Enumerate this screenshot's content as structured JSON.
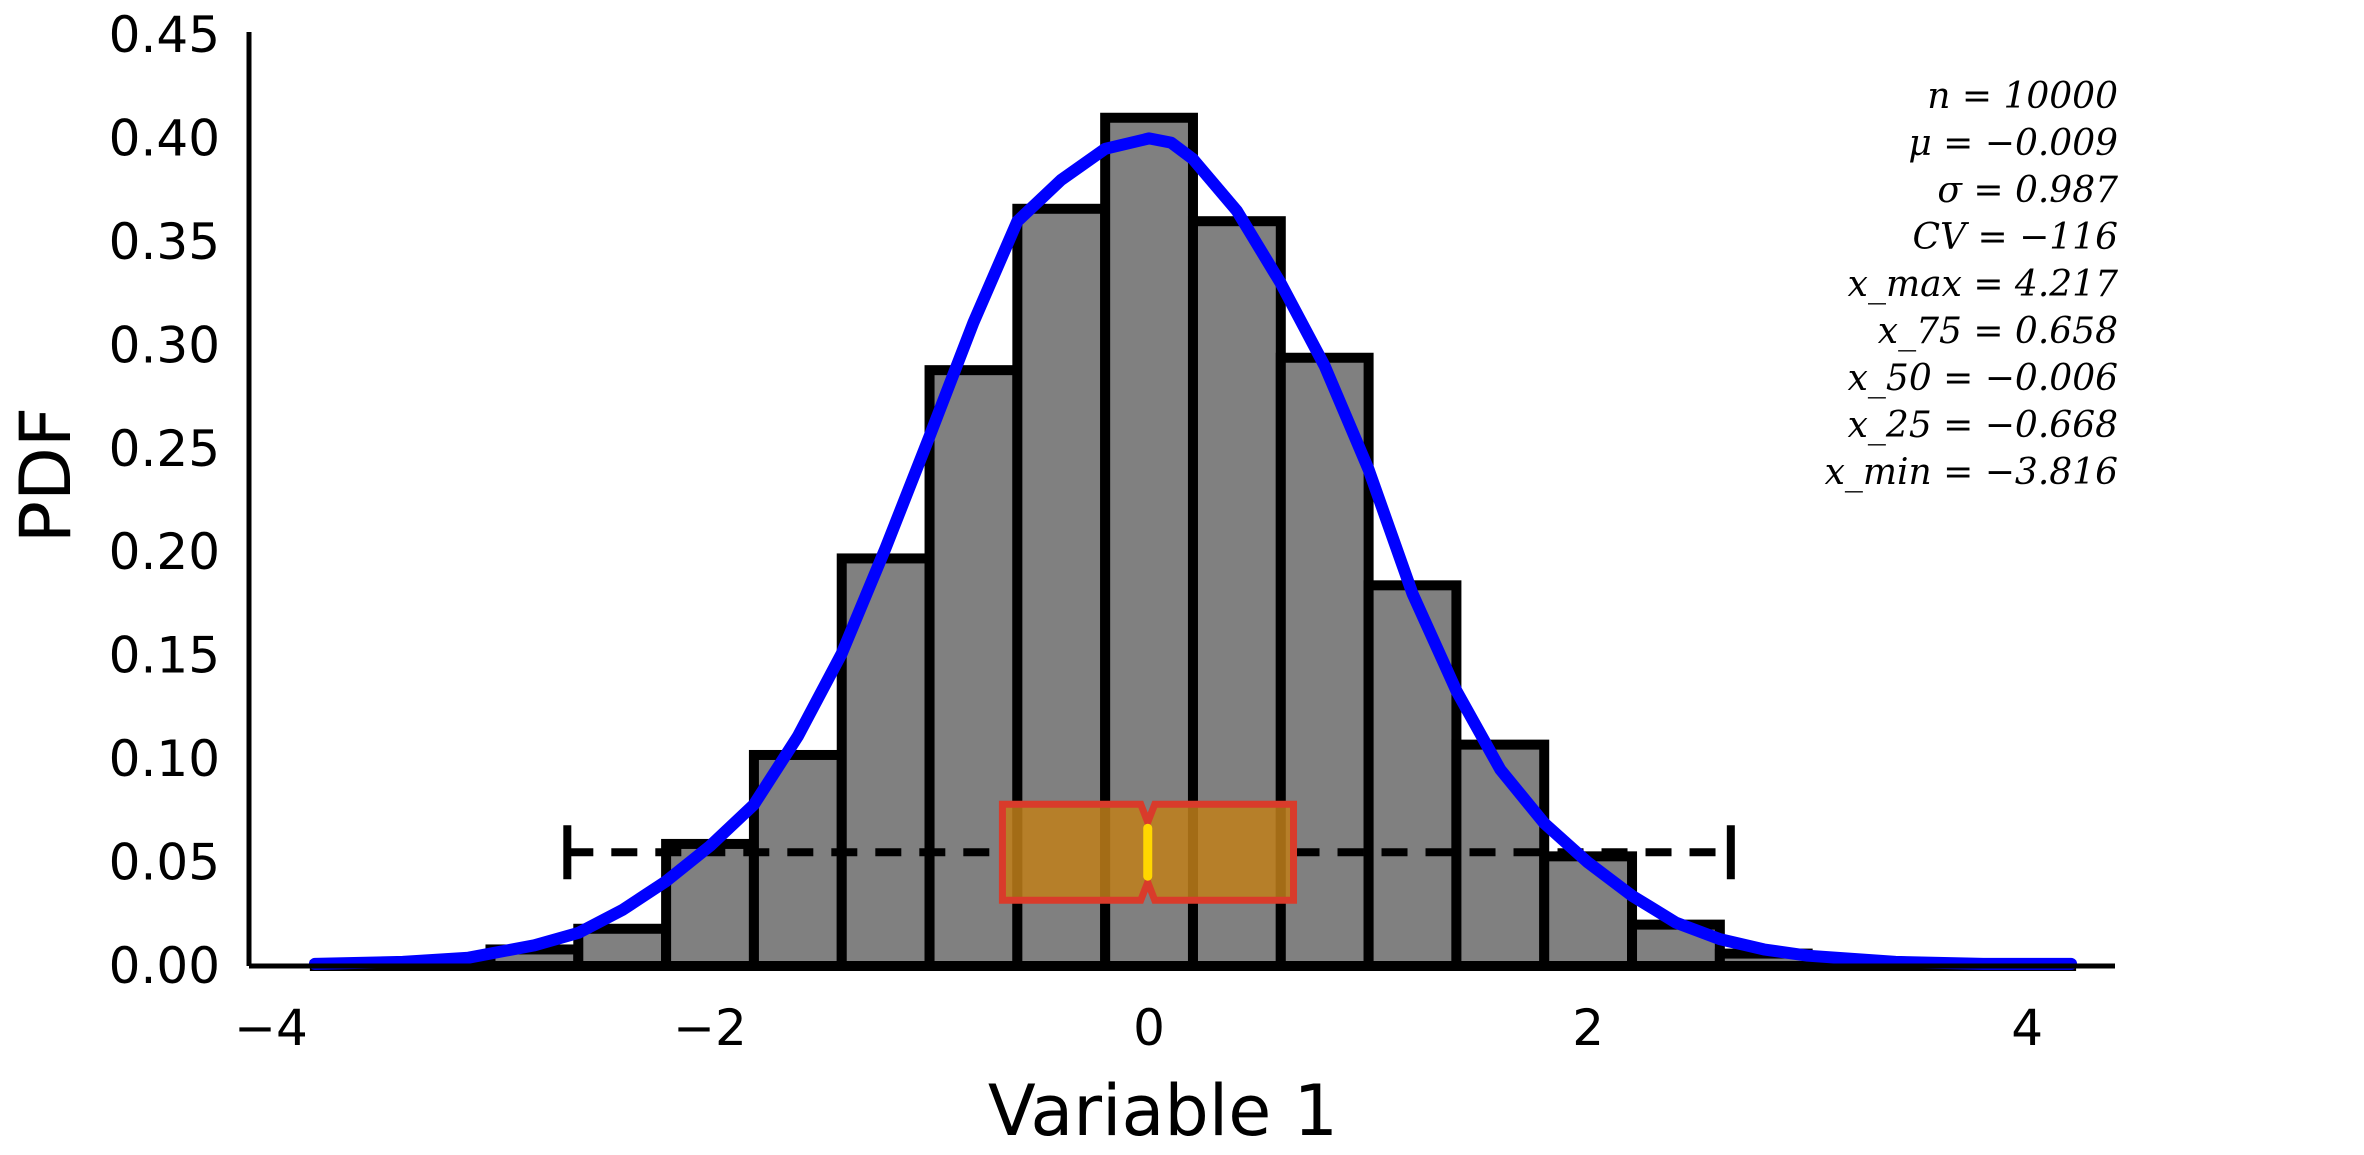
{
  "chart_data": {
    "type": "bar",
    "xlabel": "Variable 1",
    "ylabel": "PDF",
    "xlim": [
      -4.1,
      4.4
    ],
    "ylim": [
      0,
      0.45
    ],
    "x_ticks": [
      -4,
      -2,
      0,
      2,
      4
    ],
    "x_tick_labels": [
      "−4",
      "−2",
      "0",
      "2",
      "4"
    ],
    "y_ticks": [
      0,
      0.05,
      0.1,
      0.15,
      0.2,
      0.25,
      0.3,
      0.35,
      0.4,
      0.45
    ],
    "y_tick_labels": [
      "0.00",
      "0.05",
      "0.10",
      "0.15",
      "0.20",
      "0.25",
      "0.30",
      "0.35",
      "0.40",
      "0.45"
    ],
    "grid": false,
    "histogram": {
      "bin_edges": [
        -3.8,
        -3.4,
        -3.0,
        -2.6,
        -2.2,
        -1.8,
        -1.4,
        -1.0,
        -0.6,
        -0.2,
        0.2,
        0.6,
        1.0,
        1.4,
        1.8,
        2.2,
        2.6,
        3.0,
        3.4,
        3.8,
        4.2
      ],
      "density": [
        0.0005,
        0.002,
        0.008,
        0.018,
        0.059,
        0.102,
        0.197,
        0.288,
        0.366,
        0.41,
        0.36,
        0.294,
        0.184,
        0.107,
        0.053,
        0.02,
        0.006,
        0.002,
        0.001,
        0.0003
      ],
      "color": "#808080",
      "edge_color": "#000000"
    },
    "kde": {
      "name": "",
      "color": "#0000ff",
      "x": [
        -3.8,
        -3.4,
        -3.1,
        -2.8,
        -2.6,
        -2.4,
        -2.2,
        -2.0,
        -1.8,
        -1.6,
        -1.4,
        -1.2,
        -1.0,
        -0.8,
        -0.6,
        -0.4,
        -0.2,
        0.0,
        0.1,
        0.2,
        0.4,
        0.6,
        0.8,
        1.0,
        1.2,
        1.4,
        1.6,
        1.8,
        2.0,
        2.2,
        2.4,
        2.6,
        2.8,
        3.0,
        3.4,
        3.8,
        4.2
      ],
      "y": [
        0.001,
        0.002,
        0.004,
        0.01,
        0.016,
        0.027,
        0.041,
        0.058,
        0.078,
        0.111,
        0.151,
        0.202,
        0.256,
        0.311,
        0.36,
        0.38,
        0.395,
        0.4,
        0.398,
        0.39,
        0.365,
        0.33,
        0.29,
        0.24,
        0.18,
        0.133,
        0.095,
        0.069,
        0.05,
        0.034,
        0.021,
        0.013,
        0.008,
        0.005,
        0.002,
        0.001,
        0.001
      ]
    },
    "boxplot": {
      "y_position": 0.055,
      "whisker_low": -2.65,
      "whisker_high": 2.65,
      "q1": -0.668,
      "median": -0.006,
      "q3": 0.658,
      "box_fill": "#c07f1a",
      "box_edge": "#d93b2b",
      "median_color": "#ffd700",
      "whisker_color": "#000000"
    },
    "annotations": [
      "n = 10000",
      "μ = −0.009",
      "σ = 0.987",
      "CV = −116",
      "x_max = 4.217",
      "x_75 = 0.658",
      "x_50 = −0.006",
      "x_25 = −0.668",
      "x_min = −3.816"
    ]
  }
}
